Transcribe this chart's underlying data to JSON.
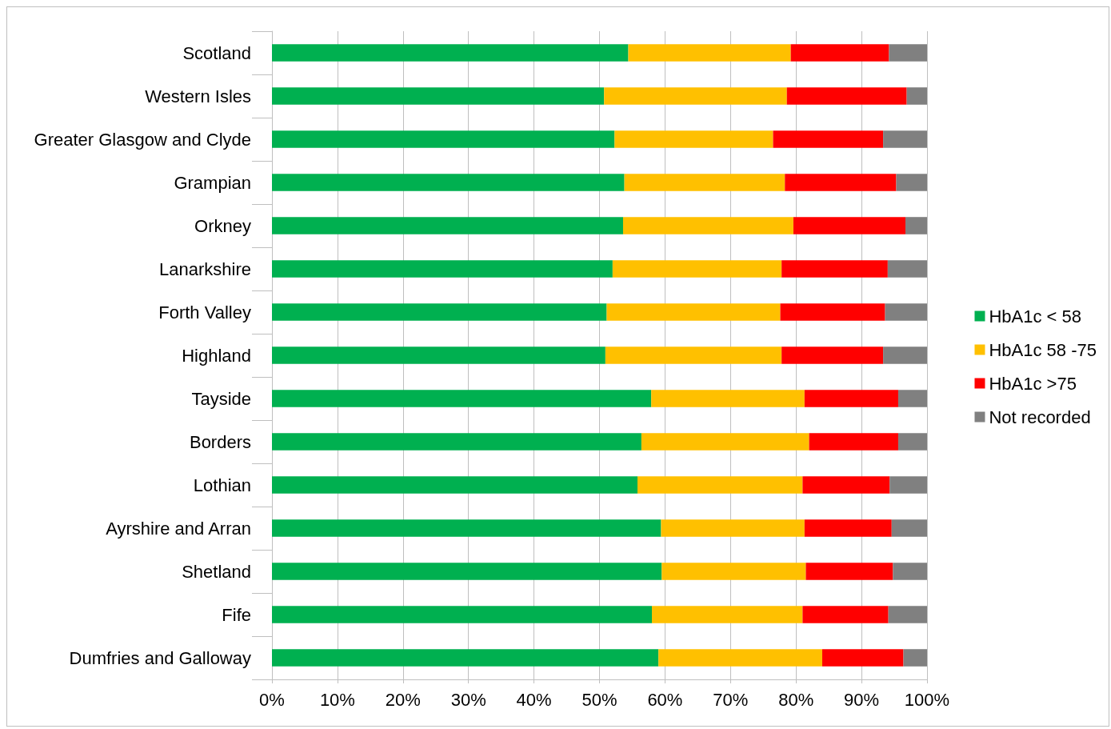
{
  "chart_data": {
    "type": "bar",
    "orientation": "horizontal",
    "stacked": true,
    "categories": [
      "Scotland",
      "Western Isles",
      "Greater Glasgow and Clyde",
      "Grampian",
      "Orkney",
      "Lanarkshire",
      "Forth Valley",
      "Highland",
      "Tayside",
      "Borders",
      "Lothian",
      "Ayrshire and Arran",
      "Shetland",
      "Fife",
      "Dumfries and Galloway"
    ],
    "series": [
      {
        "name": "HbA1c < 58",
        "color": "#00b050",
        "values": [
          54.4,
          50.7,
          52.3,
          53.8,
          53.6,
          52.0,
          51.1,
          50.9,
          57.9,
          56.4,
          55.8,
          59.4,
          59.5,
          58.0,
          59.0
        ]
      },
      {
        "name": "HbA1c 58 -75",
        "color": "#ffc000",
        "values": [
          24.8,
          27.9,
          24.2,
          24.5,
          26.0,
          25.8,
          26.5,
          26.9,
          23.4,
          25.6,
          25.2,
          21.9,
          22.0,
          23.0,
          25.0
        ]
      },
      {
        "name": "HbA1c >75",
        "color": "#ff0000",
        "values": [
          15.0,
          18.3,
          16.8,
          17.0,
          17.1,
          16.2,
          16.0,
          15.5,
          14.3,
          13.6,
          13.3,
          13.3,
          13.3,
          13.1,
          12.4
        ]
      },
      {
        "name": "Not recorded",
        "color": "#808080",
        "values": [
          5.8,
          3.1,
          6.7,
          4.7,
          3.3,
          6.0,
          6.4,
          6.7,
          4.4,
          4.4,
          5.7,
          5.4,
          5.2,
          5.9,
          3.6
        ]
      }
    ],
    "xlim": [
      0,
      100
    ],
    "xticks": [
      {
        "value": 0,
        "label": "0%"
      },
      {
        "value": 10,
        "label": "10%"
      },
      {
        "value": 20,
        "label": "20%"
      },
      {
        "value": 30,
        "label": "30%"
      },
      {
        "value": 40,
        "label": "40%"
      },
      {
        "value": 50,
        "label": "50%"
      },
      {
        "value": 60,
        "label": "60%"
      },
      {
        "value": 70,
        "label": "70%"
      },
      {
        "value": 80,
        "label": "80%"
      },
      {
        "value": 90,
        "label": "90%"
      },
      {
        "value": 100,
        "label": "100%"
      }
    ],
    "grid": "x",
    "legend": "right"
  }
}
